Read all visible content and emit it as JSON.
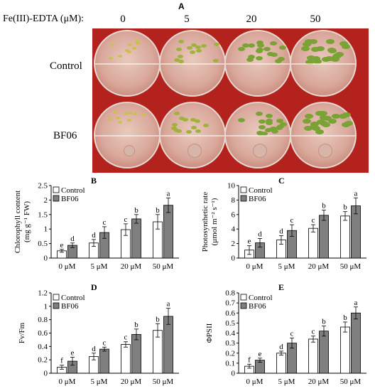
{
  "panel_a": {
    "letter": "A",
    "conc_label": "Fe(III)-EDTA (μM):",
    "concentrations": [
      "0",
      "5",
      "20",
      "50"
    ],
    "rows": [
      "Control",
      "BF06"
    ]
  },
  "chart_data": [
    {
      "panel": "B",
      "type": "bar",
      "categories": [
        "0 μM",
        "5 μM",
        "20 μM",
        "50 μM"
      ],
      "ylabel": "Chlorophyll content (mg g⁻¹ FW)",
      "ylim": [
        0,
        2.5
      ],
      "yticks": [
        "0",
        "0.5",
        "1",
        "1.5",
        "2",
        "2.5"
      ],
      "series": [
        {
          "name": "Control",
          "values": [
            0.25,
            0.52,
            0.98,
            1.25
          ],
          "errors": [
            0.05,
            0.12,
            0.2,
            0.25
          ],
          "letters": [
            "e",
            "d",
            "c",
            "b"
          ]
        },
        {
          "name": "BF06",
          "values": [
            0.44,
            0.88,
            1.35,
            1.82
          ],
          "errors": [
            0.08,
            0.2,
            0.15,
            0.25
          ],
          "letters": [
            "d",
            "c",
            "b",
            "a"
          ]
        }
      ]
    },
    {
      "panel": "C",
      "type": "bar",
      "categories": [
        "0 μM",
        "5 μM",
        "20 μM",
        "50 μM"
      ],
      "ylabel": "Photosynthetic rate (μmol m⁻² s⁻¹)",
      "ylim": [
        0,
        10
      ],
      "yticks": [
        "0",
        "2",
        "4",
        "6",
        "8",
        "10"
      ],
      "series": [
        {
          "name": "Control",
          "values": [
            1.1,
            2.5,
            4.1,
            5.8
          ],
          "errors": [
            0.6,
            0.6,
            0.5,
            0.6
          ],
          "letters": [
            "e",
            "d",
            "c",
            "b"
          ]
        },
        {
          "name": "BF06",
          "values": [
            2.1,
            3.8,
            5.9,
            7.2
          ],
          "errors": [
            0.6,
            0.8,
            0.7,
            1.1
          ],
          "letters": [
            "d",
            "c",
            "b",
            "a"
          ]
        }
      ]
    },
    {
      "panel": "D",
      "type": "bar",
      "categories": [
        "0 μM",
        "5 μM",
        "20 μM",
        "50 μM"
      ],
      "ylabel": "Fv/Fm",
      "ylim": [
        0,
        1.2
      ],
      "yticks": [
        "0",
        "0.2",
        "0.4",
        "0.6",
        "0.8",
        "1",
        "1.2"
      ],
      "series": [
        {
          "name": "Control",
          "values": [
            0.09,
            0.25,
            0.43,
            0.64
          ],
          "errors": [
            0.03,
            0.05,
            0.04,
            0.1
          ],
          "letters": [
            "f",
            "d",
            "c",
            "b"
          ]
        },
        {
          "name": "BF06",
          "values": [
            0.18,
            0.36,
            0.58,
            0.85
          ],
          "errors": [
            0.06,
            0.03,
            0.08,
            0.12
          ],
          "letters": [
            "e",
            "c",
            "b",
            "a"
          ]
        }
      ]
    },
    {
      "panel": "E",
      "type": "bar",
      "categories": [
        "0 μM",
        "5 μM",
        "20 μM",
        "50 μM"
      ],
      "ylabel": "ΦPSII",
      "ylim": [
        0,
        0.8
      ],
      "yticks": [
        "0",
        "0.1",
        "0.2",
        "0.3",
        "0.4",
        "0.5",
        "0.6",
        "0.7",
        "0.8"
      ],
      "series": [
        {
          "name": "Control",
          "values": [
            0.07,
            0.2,
            0.34,
            0.46
          ],
          "errors": [
            0.02,
            0.02,
            0.03,
            0.05
          ],
          "letters": [
            "f",
            "d",
            "c",
            "b"
          ]
        },
        {
          "name": "BF06",
          "values": [
            0.13,
            0.3,
            0.42,
            0.6
          ],
          "errors": [
            0.02,
            0.05,
            0.05,
            0.06
          ],
          "letters": [
            "e",
            "c",
            "b",
            "a"
          ]
        }
      ]
    }
  ],
  "colors": {
    "control_fill": "#ffffff",
    "bf06_fill": "#7f7f7f",
    "photo_bg": "#b3221c"
  }
}
